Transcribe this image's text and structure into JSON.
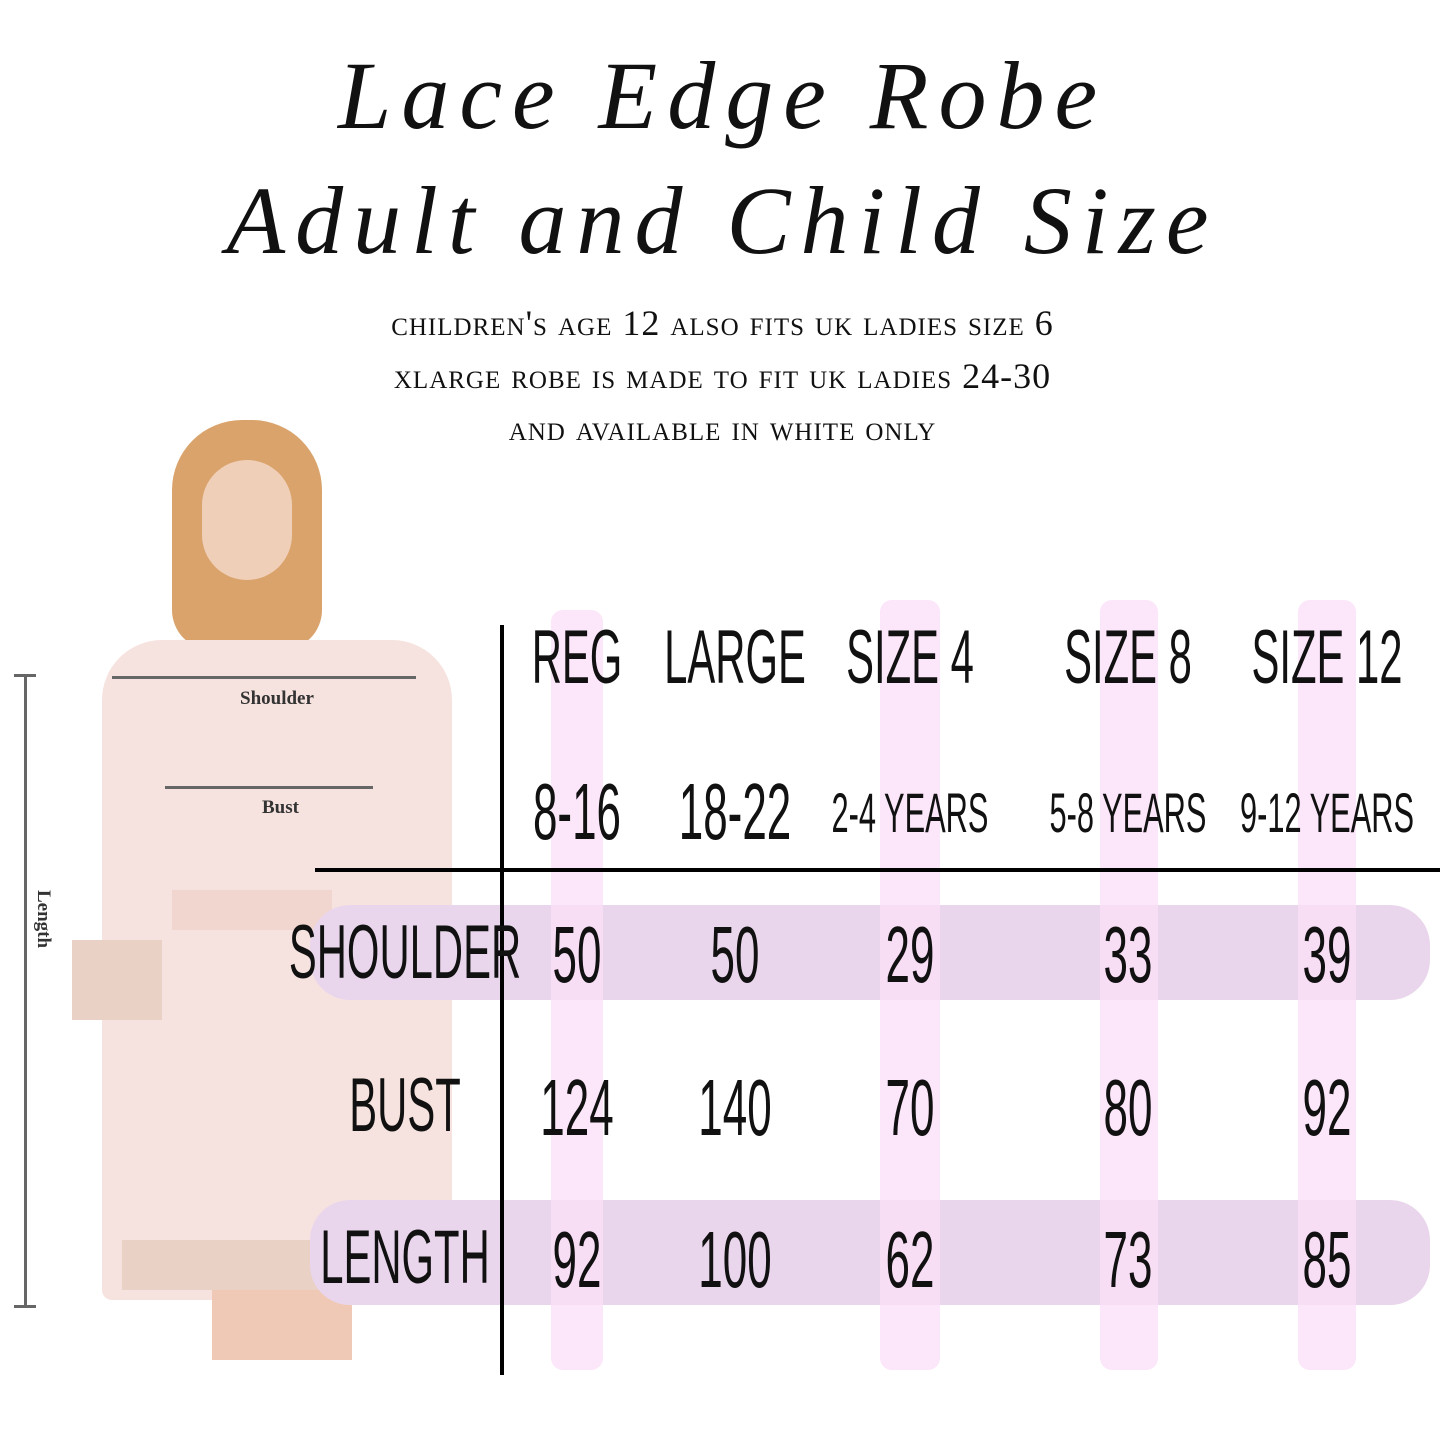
{
  "title_lines": [
    "Lace Edge Robe",
    "Adult and Child Size"
  ],
  "notes": [
    "Children's age 12 also fits UK ladies size 6",
    "XLarge robe is made to fit UK ladies 24-30",
    "and available in white only"
  ],
  "figure": {
    "shoulder_label": "Shoulder",
    "bust_label": "Bust",
    "length_label": "Length"
  },
  "table": {
    "columns": [
      {
        "size": "REG",
        "range": "8-16"
      },
      {
        "size": "LARGE",
        "range": "18-22"
      },
      {
        "size": "SIZE 4",
        "range": "2-4 YEARS"
      },
      {
        "size": "SIZE 8",
        "range": "5-8 YEARS"
      },
      {
        "size": "SIZE 12",
        "range": "9-12 YEARS"
      }
    ],
    "rows": [
      {
        "label": "SHOULDER",
        "values": [
          "50",
          "50",
          "29",
          "33",
          "39"
        ]
      },
      {
        "label": "BUST",
        "values": [
          "124",
          "140",
          "70",
          "80",
          "92"
        ]
      },
      {
        "label": "LENGTH",
        "values": [
          "92",
          "100",
          "62",
          "73",
          "85"
        ]
      }
    ]
  },
  "colors": {
    "band": "#ead6ec",
    "stripe": "#fbe0f8",
    "robe": "#f6e3df"
  }
}
